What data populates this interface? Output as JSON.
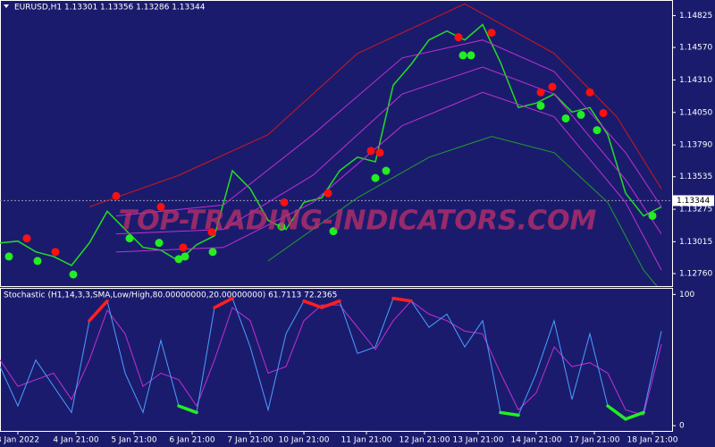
{
  "chart_data": [
    {
      "type": "line",
      "title": "EURUSD,H1  1.13301 1.13356 1.13286 1.13344",
      "watermark": "TOP-TRADING-INDICATORS.COM",
      "xlim": [
        0,
        150
      ],
      "ylim": [
        1.1266,
        1.1495
      ],
      "last_price": 1.13344,
      "yticks": [
        1.14825,
        {
          "value": 1.1457,
          "label": "1.14570"
        },
        {
          "value": 1.1431,
          "label": "1.14310"
        },
        {
          "value": 1.1405,
          "label": "1.14050"
        },
        {
          "value": 1.1379,
          "label": "1.13790"
        },
        1.13535,
        1.13275,
        1.13015,
        {
          "value": 1.1276,
          "label": "1.12760"
        }
      ],
      "series": [
        {
          "kind": "line",
          "color": "#22dd22",
          "width": 1.5,
          "x": [
            0,
            4,
            8,
            12,
            16,
            20,
            24,
            28,
            32,
            36,
            40,
            44,
            48,
            52,
            56,
            60,
            64,
            68,
            72,
            76,
            80,
            84,
            88,
            92,
            96,
            100,
            104,
            108,
            112,
            116,
            120,
            124,
            128,
            132,
            136,
            140,
            144,
            148
          ],
          "values": [
            1.13006,
            1.1302,
            1.12934,
            1.12897,
            1.12825,
            1.13006,
            1.13258,
            1.13114,
            1.1297,
            1.12948,
            1.12861,
            1.12991,
            1.13063,
            1.13583,
            1.13439,
            1.13186,
            1.13114,
            1.1333,
            1.13367,
            1.13583,
            1.13692,
            1.13655,
            1.14269,
            1.14435,
            1.1463,
            1.14702,
            1.1463,
            1.14753,
            1.1445,
            1.14089,
            1.14125,
            1.14197,
            1.14053,
            1.14089,
            1.13872,
            1.13403,
            1.13222,
            1.13294
          ]
        },
        {
          "kind": "line",
          "color": "#d01818",
          "width": 1,
          "x": [
            20,
            40,
            60,
            80,
            104,
            124,
            138,
            148
          ],
          "values": [
            1.13294,
            1.13547,
            1.13872,
            1.14522,
            1.14919,
            1.14522,
            1.14016,
            1.13439
          ]
        },
        {
          "kind": "line",
          "color": "#c030d0",
          "width": 1,
          "x": [
            26,
            50,
            70,
            90,
            108,
            124,
            140,
            148
          ],
          "values": [
            1.13222,
            1.13309,
            1.13872,
            1.14486,
            1.1463,
            1.14377,
            1.13728,
            1.13294
          ]
        },
        {
          "kind": "line",
          "color": "#c030d0",
          "width": 1,
          "x": [
            26,
            50,
            70,
            90,
            108,
            124,
            140,
            148
          ],
          "values": [
            1.13078,
            1.13114,
            1.13547,
            1.14197,
            1.14413,
            1.14197,
            1.13511,
            1.13078
          ]
        },
        {
          "kind": "line",
          "color": "#c030d0",
          "width": 1,
          "x": [
            26,
            50,
            70,
            90,
            108,
            124,
            140,
            148
          ],
          "values": [
            1.12933,
            1.12969,
            1.1333,
            1.13944,
            1.14211,
            1.14016,
            1.1333,
            1.12789
          ]
        },
        {
          "kind": "line",
          "color": "#1fa02a",
          "width": 1,
          "x": [
            60,
            80,
            96,
            110,
            124,
            136,
            144,
            147
          ],
          "values": [
            1.12861,
            1.13367,
            1.13691,
            1.13858,
            1.13728,
            1.1333,
            1.12789,
            1.12659
          ]
        },
        {
          "kind": "dots",
          "color": "#ff1010",
          "x": [
            6,
            12.4,
            26,
            36,
            41,
            47.4,
            63.6,
            73.4,
            83,
            85,
            102.6,
            110,
            121,
            123.6,
            132,
            135
          ],
          "values": [
            1.13042,
            1.12933,
            1.13381,
            1.13294,
            1.12969,
            1.13092,
            1.1333,
            1.13403,
            1.13742,
            1.13728,
            1.14652,
            1.14688,
            1.14211,
            1.14255,
            1.14211,
            1.14045
          ]
        },
        {
          "kind": "dots",
          "color": "#22ee22",
          "x": [
            2,
            8.4,
            16.4,
            29,
            35.6,
            40,
            41.4,
            47.6,
            63,
            74.6,
            84,
            86.4,
            103.6,
            105.4,
            121,
            126.6,
            130,
            133.6,
            146
          ],
          "values": [
            1.12897,
            1.12861,
            1.12753,
            1.13042,
            1.13006,
            1.12876,
            1.12897,
            1.12933,
            1.13136,
            1.13099,
            1.13525,
            1.13583,
            1.14507,
            1.14507,
            1.14103,
            1.14002,
            1.14031,
            1.13908,
            1.13222
          ]
        }
      ]
    },
    {
      "type": "line",
      "title": "Stochastic (H1,14,3,3,SMA,Low/High,80.00000000,20.00000000) 61.7113 72.2365",
      "xlim": [
        0,
        150
      ],
      "ylim": [
        -4,
        105
      ],
      "yticks": [
        100,
        0
      ],
      "overbought": 80,
      "oversold": 20,
      "xticks": [
        {
          "value": 4,
          "label": "3 Jan 2022"
        },
        {
          "value": 17,
          "label": "4 Jan 21:00"
        },
        {
          "value": 30,
          "label": "5 Jan 21:00"
        },
        {
          "value": 43,
          "label": "6 Jan 21:00"
        },
        {
          "value": 56,
          "label": "7 Jan 21:00"
        },
        {
          "value": 68,
          "label": "10 Jan 21:00"
        },
        {
          "value": 82,
          "label": "11 Jan 21:00"
        },
        {
          "value": 95,
          "label": "12 Jan 21:00"
        },
        {
          "value": 107,
          "label": "13 Jan 21:00"
        },
        {
          "value": 120,
          "label": "14 Jan 21:00"
        },
        {
          "value": 133,
          "label": "17 Jan 21:00"
        },
        {
          "value": 146,
          "label": "18 Jan 21:00"
        }
      ],
      "series": [
        {
          "kind": "line",
          "color": "#c030d0",
          "width": 1,
          "x": [
            0,
            4,
            8,
            12,
            16,
            20,
            24,
            28,
            32,
            36,
            40,
            44,
            48,
            52,
            56,
            60,
            64,
            68,
            72,
            76,
            80,
            84,
            88,
            92,
            96,
            100,
            104,
            108,
            112,
            116,
            120,
            124,
            128,
            132,
            136,
            140,
            144,
            148
          ],
          "values": [
            50,
            30,
            35,
            40,
            20,
            50,
            88,
            70,
            30,
            40,
            35,
            15,
            50,
            90,
            80,
            40,
            45,
            80,
            92,
            92,
            75,
            58,
            80,
            95,
            85,
            80,
            72,
            70,
            40,
            12,
            25,
            60,
            45,
            48,
            40,
            12,
            8,
            62
          ]
        },
        {
          "kind": "line",
          "color": "#4aa0ff",
          "width": 1,
          "highlight": true,
          "x": [
            0,
            4,
            8,
            12,
            16,
            20,
            24,
            28,
            32,
            36,
            40,
            44,
            48,
            52,
            56,
            60,
            64,
            68,
            72,
            76,
            80,
            84,
            88,
            92,
            96,
            100,
            104,
            108,
            112,
            116,
            120,
            124,
            128,
            132,
            136,
            140,
            144,
            148
          ],
          "values": [
            45,
            15,
            50,
            30,
            10,
            80,
            95,
            40,
            10,
            65,
            15,
            10,
            90,
            97,
            60,
            12,
            70,
            95,
            90,
            95,
            55,
            60,
            97,
            95,
            75,
            85,
            60,
            80,
            10,
            8,
            40,
            80,
            20,
            70,
            15,
            5,
            10,
            72
          ]
        }
      ]
    }
  ]
}
